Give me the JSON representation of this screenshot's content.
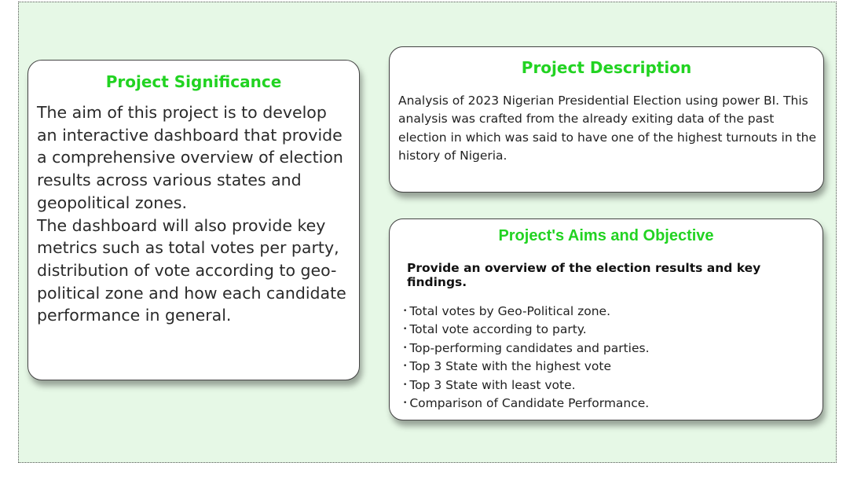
{
  "significance": {
    "title": "Project Significance",
    "paragraph1": "The aim of this project is to develop an interactive dashboard that provide a comprehensive overview of election results across various states and geopolitical zones.",
    "paragraph2": "The dashboard will also provide key metrics such as total votes per party, distribution of vote according to geo-political zone and how each candidate performance in general."
  },
  "description": {
    "title": "Project Description",
    "text": "Analysis of 2023 Nigerian Presidential Election using power BI. This analysis was crafted from the already exiting data of the past election in which was said to have one of the highest turnouts in the history of Nigeria."
  },
  "aims": {
    "title": "Project's Aims and Objective",
    "subtitle": "Provide an overview of the election results and key findings.",
    "items": [
      "Total votes by Geo-Political zone.",
      "Total vote according to party.",
      "Top-performing candidates and parties.",
      "Top 3 State with the highest vote",
      "Top 3 State with least vote.",
      "Comparison of Candidate Performance."
    ]
  },
  "colors": {
    "title_green": "#22d322",
    "background": "#e6f8e6"
  }
}
